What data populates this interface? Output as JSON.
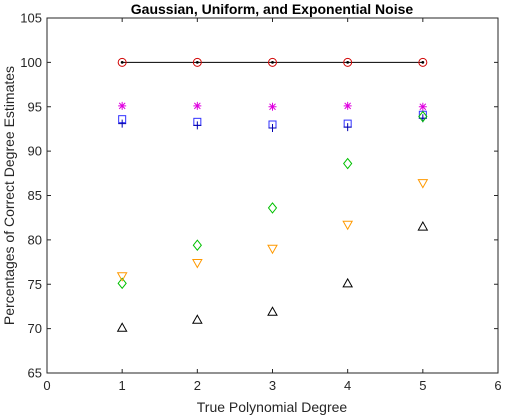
{
  "chart_data": {
    "type": "scatter",
    "title": "Gaussian, Uniform, and Exponential Noise",
    "xlabel": "True Polynomial Degree",
    "ylabel": "Percentages of Correct Degree Estimates",
    "xlim": [
      0,
      6
    ],
    "ylim": [
      65,
      105
    ],
    "xticks": [
      "0",
      "1",
      "2",
      "3",
      "4",
      "5",
      "6"
    ],
    "yticks": [
      "65",
      "70",
      "75",
      "80",
      "85",
      "90",
      "95",
      "100",
      "105"
    ],
    "grid": false,
    "series": [
      {
        "marker": "line",
        "color": "#000000",
        "x": [
          1,
          2,
          3,
          4,
          5
        ],
        "y": [
          100,
          100,
          100,
          100,
          100
        ]
      },
      {
        "marker": "circle",
        "color": "#d00000",
        "x": [
          1,
          2,
          3,
          4,
          5
        ],
        "y": [
          100,
          100,
          100,
          100,
          100
        ]
      },
      {
        "marker": "dot",
        "color": "#000000",
        "x": [
          1,
          2,
          3,
          4,
          5
        ],
        "y": [
          100,
          100,
          100,
          100,
          100
        ]
      },
      {
        "marker": "asterisk",
        "color": "#e000e0",
        "x": [
          1,
          2,
          3,
          4,
          5
        ],
        "y": [
          95.1,
          95.1,
          95.0,
          95.1,
          95.0
        ]
      },
      {
        "marker": "square",
        "color": "#3030ff",
        "x": [
          1,
          2,
          3,
          4,
          5
        ],
        "y": [
          93.6,
          93.3,
          93.0,
          93.1,
          94.1
        ]
      },
      {
        "marker": "plus",
        "color": "#0000b0",
        "x": [
          1,
          2,
          3,
          4,
          5
        ],
        "y": [
          93.1,
          92.9,
          92.6,
          92.7,
          93.7
        ]
      },
      {
        "marker": "diamond",
        "color": "#00c000",
        "x": [
          1,
          2,
          3,
          4,
          5
        ],
        "y": [
          75.1,
          79.4,
          83.6,
          88.6,
          93.9
        ]
      },
      {
        "marker": "triangle-down",
        "color": "#ff9900",
        "x": [
          1,
          2,
          3,
          4,
          5
        ],
        "y": [
          75.9,
          77.4,
          79.0,
          81.7,
          86.4
        ]
      },
      {
        "marker": "triangle-up",
        "color": "#000000",
        "x": [
          1,
          2,
          3,
          4,
          5
        ],
        "y": [
          70.1,
          71.0,
          71.9,
          75.1,
          81.5
        ]
      }
    ]
  }
}
